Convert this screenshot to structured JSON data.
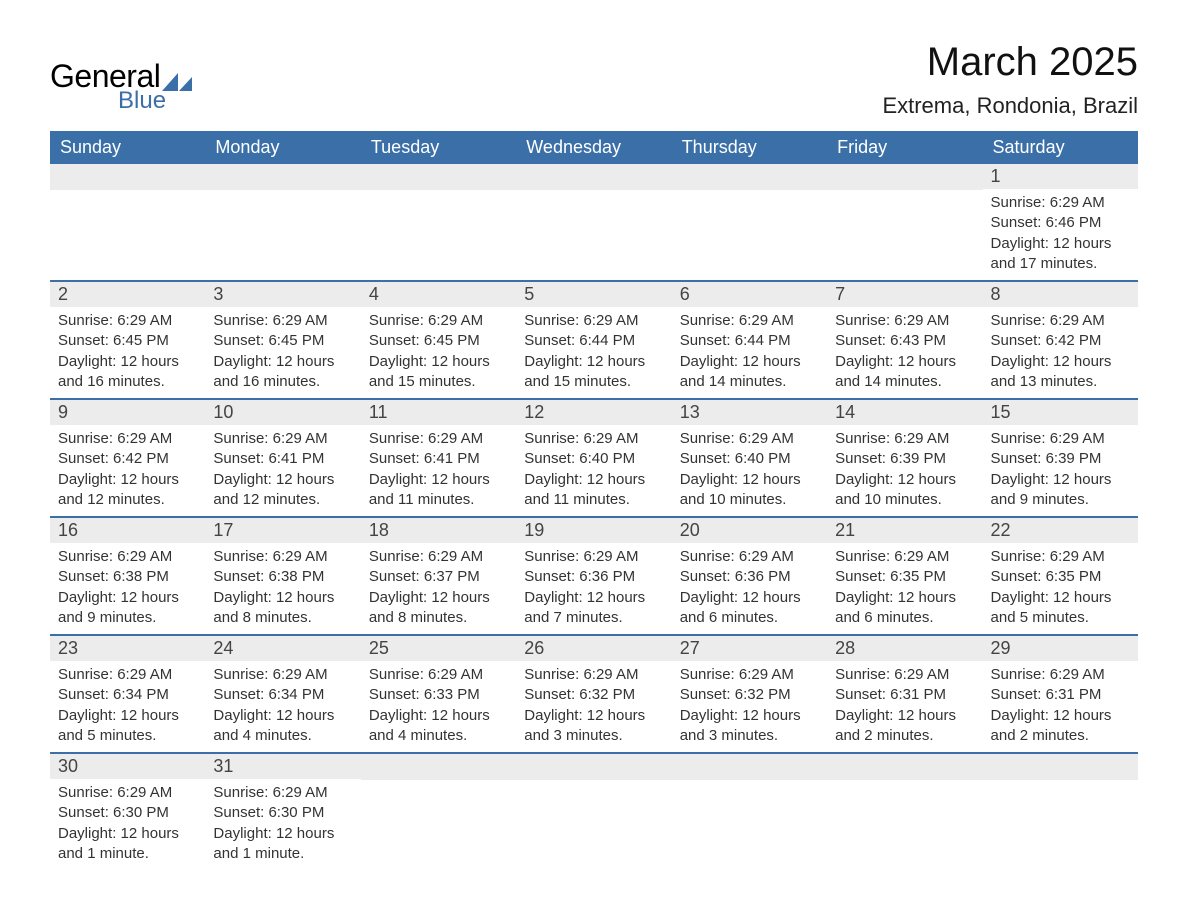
{
  "logo": {
    "word1": "General",
    "word2": "Blue",
    "mark_color": "#3b6fa8"
  },
  "title": "March 2025",
  "location": "Extrema, Rondonia, Brazil",
  "colors": {
    "header_bg": "#3b6fa8",
    "header_text": "#ffffff",
    "daynum_bg": "#ececec",
    "row_border": "#3b6fa8",
    "body_text": "#333333"
  },
  "weekdays": [
    "Sunday",
    "Monday",
    "Tuesday",
    "Wednesday",
    "Thursday",
    "Friday",
    "Saturday"
  ],
  "weeks": [
    [
      {
        "empty": true
      },
      {
        "empty": true
      },
      {
        "empty": true
      },
      {
        "empty": true
      },
      {
        "empty": true
      },
      {
        "empty": true
      },
      {
        "num": "1",
        "sunrise": "Sunrise: 6:29 AM",
        "sunset": "Sunset: 6:46 PM",
        "daylight": "Daylight: 12 hours and 17 minutes."
      }
    ],
    [
      {
        "num": "2",
        "sunrise": "Sunrise: 6:29 AM",
        "sunset": "Sunset: 6:45 PM",
        "daylight": "Daylight: 12 hours and 16 minutes."
      },
      {
        "num": "3",
        "sunrise": "Sunrise: 6:29 AM",
        "sunset": "Sunset: 6:45 PM",
        "daylight": "Daylight: 12 hours and 16 minutes."
      },
      {
        "num": "4",
        "sunrise": "Sunrise: 6:29 AM",
        "sunset": "Sunset: 6:45 PM",
        "daylight": "Daylight: 12 hours and 15 minutes."
      },
      {
        "num": "5",
        "sunrise": "Sunrise: 6:29 AM",
        "sunset": "Sunset: 6:44 PM",
        "daylight": "Daylight: 12 hours and 15 minutes."
      },
      {
        "num": "6",
        "sunrise": "Sunrise: 6:29 AM",
        "sunset": "Sunset: 6:44 PM",
        "daylight": "Daylight: 12 hours and 14 minutes."
      },
      {
        "num": "7",
        "sunrise": "Sunrise: 6:29 AM",
        "sunset": "Sunset: 6:43 PM",
        "daylight": "Daylight: 12 hours and 14 minutes."
      },
      {
        "num": "8",
        "sunrise": "Sunrise: 6:29 AM",
        "sunset": "Sunset: 6:42 PM",
        "daylight": "Daylight: 12 hours and 13 minutes."
      }
    ],
    [
      {
        "num": "9",
        "sunrise": "Sunrise: 6:29 AM",
        "sunset": "Sunset: 6:42 PM",
        "daylight": "Daylight: 12 hours and 12 minutes."
      },
      {
        "num": "10",
        "sunrise": "Sunrise: 6:29 AM",
        "sunset": "Sunset: 6:41 PM",
        "daylight": "Daylight: 12 hours and 12 minutes."
      },
      {
        "num": "11",
        "sunrise": "Sunrise: 6:29 AM",
        "sunset": "Sunset: 6:41 PM",
        "daylight": "Daylight: 12 hours and 11 minutes."
      },
      {
        "num": "12",
        "sunrise": "Sunrise: 6:29 AM",
        "sunset": "Sunset: 6:40 PM",
        "daylight": "Daylight: 12 hours and 11 minutes."
      },
      {
        "num": "13",
        "sunrise": "Sunrise: 6:29 AM",
        "sunset": "Sunset: 6:40 PM",
        "daylight": "Daylight: 12 hours and 10 minutes."
      },
      {
        "num": "14",
        "sunrise": "Sunrise: 6:29 AM",
        "sunset": "Sunset: 6:39 PM",
        "daylight": "Daylight: 12 hours and 10 minutes."
      },
      {
        "num": "15",
        "sunrise": "Sunrise: 6:29 AM",
        "sunset": "Sunset: 6:39 PM",
        "daylight": "Daylight: 12 hours and 9 minutes."
      }
    ],
    [
      {
        "num": "16",
        "sunrise": "Sunrise: 6:29 AM",
        "sunset": "Sunset: 6:38 PM",
        "daylight": "Daylight: 12 hours and 9 minutes."
      },
      {
        "num": "17",
        "sunrise": "Sunrise: 6:29 AM",
        "sunset": "Sunset: 6:38 PM",
        "daylight": "Daylight: 12 hours and 8 minutes."
      },
      {
        "num": "18",
        "sunrise": "Sunrise: 6:29 AM",
        "sunset": "Sunset: 6:37 PM",
        "daylight": "Daylight: 12 hours and 8 minutes."
      },
      {
        "num": "19",
        "sunrise": "Sunrise: 6:29 AM",
        "sunset": "Sunset: 6:36 PM",
        "daylight": "Daylight: 12 hours and 7 minutes."
      },
      {
        "num": "20",
        "sunrise": "Sunrise: 6:29 AM",
        "sunset": "Sunset: 6:36 PM",
        "daylight": "Daylight: 12 hours and 6 minutes."
      },
      {
        "num": "21",
        "sunrise": "Sunrise: 6:29 AM",
        "sunset": "Sunset: 6:35 PM",
        "daylight": "Daylight: 12 hours and 6 minutes."
      },
      {
        "num": "22",
        "sunrise": "Sunrise: 6:29 AM",
        "sunset": "Sunset: 6:35 PM",
        "daylight": "Daylight: 12 hours and 5 minutes."
      }
    ],
    [
      {
        "num": "23",
        "sunrise": "Sunrise: 6:29 AM",
        "sunset": "Sunset: 6:34 PM",
        "daylight": "Daylight: 12 hours and 5 minutes."
      },
      {
        "num": "24",
        "sunrise": "Sunrise: 6:29 AM",
        "sunset": "Sunset: 6:34 PM",
        "daylight": "Daylight: 12 hours and 4 minutes."
      },
      {
        "num": "25",
        "sunrise": "Sunrise: 6:29 AM",
        "sunset": "Sunset: 6:33 PM",
        "daylight": "Daylight: 12 hours and 4 minutes."
      },
      {
        "num": "26",
        "sunrise": "Sunrise: 6:29 AM",
        "sunset": "Sunset: 6:32 PM",
        "daylight": "Daylight: 12 hours and 3 minutes."
      },
      {
        "num": "27",
        "sunrise": "Sunrise: 6:29 AM",
        "sunset": "Sunset: 6:32 PM",
        "daylight": "Daylight: 12 hours and 3 minutes."
      },
      {
        "num": "28",
        "sunrise": "Sunrise: 6:29 AM",
        "sunset": "Sunset: 6:31 PM",
        "daylight": "Daylight: 12 hours and 2 minutes."
      },
      {
        "num": "29",
        "sunrise": "Sunrise: 6:29 AM",
        "sunset": "Sunset: 6:31 PM",
        "daylight": "Daylight: 12 hours and 2 minutes."
      }
    ],
    [
      {
        "num": "30",
        "sunrise": "Sunrise: 6:29 AM",
        "sunset": "Sunset: 6:30 PM",
        "daylight": "Daylight: 12 hours and 1 minute."
      },
      {
        "num": "31",
        "sunrise": "Sunrise: 6:29 AM",
        "sunset": "Sunset: 6:30 PM",
        "daylight": "Daylight: 12 hours and 1 minute."
      },
      {
        "empty": true
      },
      {
        "empty": true
      },
      {
        "empty": true
      },
      {
        "empty": true
      },
      {
        "empty": true
      }
    ]
  ]
}
